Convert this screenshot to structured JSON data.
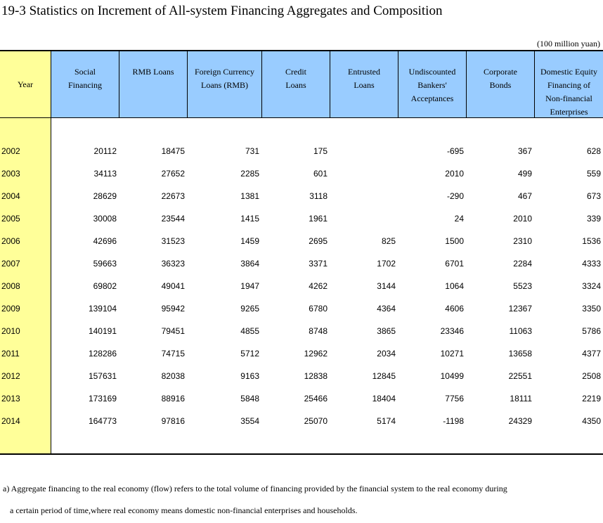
{
  "title": "19-3  Statistics on Increment of All-system Financing Aggregates and Composition",
  "unit": "(100 million yuan)",
  "headers": {
    "year": "Year",
    "social": [
      "Social",
      "Financing"
    ],
    "rmb": [
      "RMB Loans"
    ],
    "foreign": [
      "Foreign Currency",
      "Loans (RMB)"
    ],
    "credit": [
      "Credit",
      "Loans"
    ],
    "entrusted": [
      "Entrusted",
      "Loans"
    ],
    "undiscounted": [
      "Undiscounted",
      "Bankers'",
      "Acceptances"
    ],
    "corporate": [
      "Corporate",
      "Bonds"
    ],
    "equity": [
      "Domestic Equity",
      "Financing of",
      "Non-financial",
      "Enterprises"
    ]
  },
  "rows": [
    [
      "2002",
      "20112",
      "18475",
      "731",
      "175",
      "",
      "-695",
      "367",
      "628"
    ],
    [
      "2003",
      "34113",
      "27652",
      "2285",
      "601",
      "",
      "2010",
      "499",
      "559"
    ],
    [
      "2004",
      "28629",
      "22673",
      "1381",
      "3118",
      "",
      "-290",
      "467",
      "673"
    ],
    [
      "2005",
      "30008",
      "23544",
      "1415",
      "1961",
      "",
      "24",
      "2010",
      "339"
    ],
    [
      "2006",
      "42696",
      "31523",
      "1459",
      "2695",
      "825",
      "1500",
      "2310",
      "1536"
    ],
    [
      "2007",
      "59663",
      "36323",
      "3864",
      "3371",
      "1702",
      "6701",
      "2284",
      "4333"
    ],
    [
      "2008",
      "69802",
      "49041",
      "1947",
      "4262",
      "3144",
      "1064",
      "5523",
      "3324"
    ],
    [
      "2009",
      "139104",
      "95942",
      "9265",
      "6780",
      "4364",
      "4606",
      "12367",
      "3350"
    ],
    [
      "2010",
      "140191",
      "79451",
      "4855",
      "8748",
      "3865",
      "23346",
      "11063",
      "5786"
    ],
    [
      "2011",
      "128286",
      "74715",
      "5712",
      "12962",
      "2034",
      "10271",
      "13658",
      "4377"
    ],
    [
      "2012",
      "157631",
      "82038",
      "9163",
      "12838",
      "12845",
      "10499",
      "22551",
      "2508"
    ],
    [
      "2013",
      "173169",
      "88916",
      "5848",
      "25466",
      "18404",
      "7756",
      "18111",
      "2219"
    ],
    [
      "2014",
      "164773",
      "97816",
      "3554",
      "25070",
      "5174",
      "-1198",
      "24329",
      "4350"
    ]
  ],
  "footnote": [
    "a) Aggregate financing to the real economy (flow) refers to the total volume of financing provided by the financial system to the real economy during",
    "a certain period of time,where real economy means domestic non-financial enterprises and households."
  ]
}
